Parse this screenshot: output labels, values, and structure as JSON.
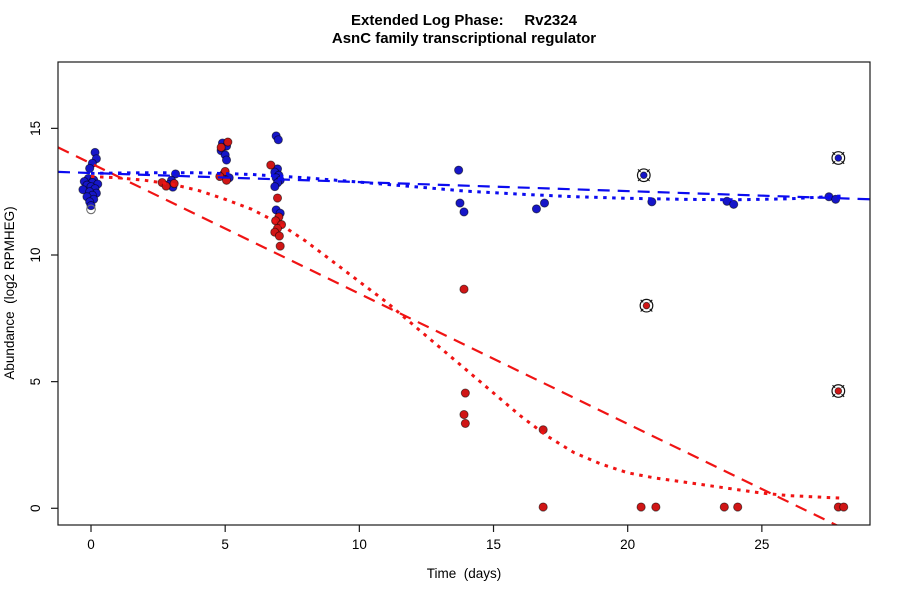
{
  "title": {
    "line1": "Extended Log Phase:     Rv2324",
    "line2": "AsnC family transcriptional regulator"
  },
  "colors": {
    "blue_point": "#1616C8",
    "red_point": "#D01616",
    "blue_line": "#0B0BF0",
    "red_line": "#F01414",
    "frame": "#1a1a1a",
    "circled_ring": "#111111",
    "open_circle": "#6f6f6f"
  },
  "chart_data": {
    "type": "scatter",
    "title": "Extended Log Phase: Rv2324 — AsnC family transcriptional regulator",
    "xlabel": "Time  (days)",
    "ylabel": "Abundance  (log2 RPMHEG)",
    "xlim": [
      -1.23,
      29.03
    ],
    "ylim": [
      -0.66,
      17.62
    ],
    "x_ticks": [
      0,
      5,
      10,
      15,
      20,
      25
    ],
    "y_ticks": [
      0,
      5,
      10,
      15
    ],
    "grid": false,
    "legend": "none",
    "series": [
      {
        "name": "blue-replicates",
        "marker": "filled-dot",
        "color_key": "blue_point",
        "points": [
          [
            0.15,
            14.05
          ],
          [
            0.2,
            13.8
          ],
          [
            0.05,
            13.62
          ],
          [
            -0.05,
            13.42
          ],
          [
            -0.1,
            13.02
          ],
          [
            0.1,
            12.96
          ],
          [
            -0.25,
            12.9
          ],
          [
            0.05,
            12.86
          ],
          [
            0.25,
            12.8
          ],
          [
            -0.15,
            12.76
          ],
          [
            0.0,
            12.7
          ],
          [
            0.15,
            12.62
          ],
          [
            -0.3,
            12.58
          ],
          [
            -0.05,
            12.5
          ],
          [
            0.2,
            12.44
          ],
          [
            0.05,
            12.36
          ],
          [
            -0.15,
            12.3
          ],
          [
            0.1,
            12.2
          ],
          [
            -0.05,
            12.1
          ],
          [
            0.0,
            11.95
          ],
          [
            3.15,
            13.2
          ],
          [
            3.0,
            12.95
          ],
          [
            2.9,
            12.78
          ],
          [
            3.05,
            12.68
          ],
          [
            4.9,
            14.42
          ],
          [
            5.05,
            14.3
          ],
          [
            4.85,
            14.12
          ],
          [
            5.0,
            13.95
          ],
          [
            5.05,
            13.75
          ],
          [
            4.95,
            13.2
          ],
          [
            5.15,
            13.05
          ],
          [
            6.9,
            14.7
          ],
          [
            6.98,
            14.55
          ],
          [
            6.95,
            13.4
          ],
          [
            6.85,
            13.27
          ],
          [
            7.0,
            13.15
          ],
          [
            6.9,
            13.05
          ],
          [
            7.05,
            12.95
          ],
          [
            6.95,
            12.85
          ],
          [
            6.85,
            12.7
          ],
          [
            6.9,
            11.78
          ],
          [
            7.05,
            11.65
          ],
          [
            13.7,
            13.35
          ],
          [
            13.75,
            12.05
          ],
          [
            13.9,
            11.7
          ],
          [
            16.6,
            11.82
          ],
          [
            16.9,
            12.05
          ],
          [
            20.9,
            12.1
          ],
          [
            23.7,
            12.12
          ],
          [
            23.95,
            12.0
          ],
          [
            27.5,
            12.3
          ],
          [
            27.75,
            12.2
          ]
        ]
      },
      {
        "name": "red-replicates",
        "marker": "filled-dot",
        "color_key": "red_point",
        "points": [
          [
            2.65,
            12.86
          ],
          [
            2.8,
            12.72
          ],
          [
            3.1,
            12.82
          ],
          [
            5.1,
            14.46
          ],
          [
            4.85,
            14.25
          ],
          [
            5.0,
            13.3
          ],
          [
            4.8,
            13.1
          ],
          [
            5.05,
            12.95
          ],
          [
            6.7,
            13.55
          ],
          [
            6.95,
            12.25
          ],
          [
            7.0,
            11.5
          ],
          [
            6.88,
            11.35
          ],
          [
            7.1,
            11.2
          ],
          [
            6.95,
            11.05
          ],
          [
            6.85,
            10.9
          ],
          [
            7.02,
            10.75
          ],
          [
            7.05,
            10.35
          ],
          [
            13.9,
            8.65
          ],
          [
            13.95,
            4.55
          ],
          [
            13.9,
            3.7
          ],
          [
            13.95,
            3.35
          ],
          [
            16.85,
            3.1
          ],
          [
            16.85,
            0.05
          ],
          [
            20.5,
            0.05
          ],
          [
            21.05,
            0.05
          ],
          [
            23.6,
            0.05
          ],
          [
            24.1,
            0.05
          ],
          [
            27.85,
            0.05
          ],
          [
            28.05,
            0.05
          ]
        ]
      },
      {
        "name": "blue-flagged-outliers",
        "marker": "circled-dot",
        "color_key": "blue_point",
        "points": [
          [
            20.6,
            13.15
          ],
          [
            27.85,
            13.83
          ]
        ]
      },
      {
        "name": "red-flagged-outliers",
        "marker": "circled-dot",
        "color_key": "red_point",
        "points": [
          [
            20.7,
            8.0
          ],
          [
            27.85,
            4.63
          ]
        ]
      },
      {
        "name": "open-circle-points",
        "marker": "open-dot",
        "color_key": "open_circle",
        "points": [
          [
            0.0,
            11.8
          ]
        ]
      }
    ],
    "lines": [
      {
        "name": "blue-linear-fit",
        "style": "dashed",
        "color_key": "blue_line",
        "points": [
          [
            -1.23,
            13.28
          ],
          [
            29.03,
            12.2
          ]
        ]
      },
      {
        "name": "red-linear-fit",
        "style": "dashed",
        "color_key": "red_line",
        "points": [
          [
            -1.23,
            14.25
          ],
          [
            29.03,
            -1.31
          ]
        ]
      },
      {
        "name": "blue-loess-fit",
        "style": "dotted",
        "color_key": "blue_line",
        "points": [
          [
            0,
            13.22
          ],
          [
            2,
            13.25
          ],
          [
            4,
            13.25
          ],
          [
            6,
            13.18
          ],
          [
            8,
            13.05
          ],
          [
            10,
            12.88
          ],
          [
            12,
            12.7
          ],
          [
            14,
            12.52
          ],
          [
            16,
            12.4
          ],
          [
            18,
            12.3
          ],
          [
            20,
            12.24
          ],
          [
            22,
            12.2
          ],
          [
            24,
            12.18
          ],
          [
            26,
            12.22
          ],
          [
            28,
            12.33
          ]
        ]
      },
      {
        "name": "red-loess-fit",
        "style": "dotted",
        "color_key": "red_line",
        "points": [
          [
            0,
            13.1
          ],
          [
            1,
            13.05
          ],
          [
            2,
            12.95
          ],
          [
            3,
            12.8
          ],
          [
            4,
            12.55
          ],
          [
            5,
            12.2
          ],
          [
            6,
            11.8
          ],
          [
            7,
            11.25
          ],
          [
            8,
            10.55
          ],
          [
            9,
            9.75
          ],
          [
            10,
            8.95
          ],
          [
            11,
            8.15
          ],
          [
            12,
            7.25
          ],
          [
            13,
            6.35
          ],
          [
            14,
            5.45
          ],
          [
            15,
            4.55
          ],
          [
            16,
            3.65
          ],
          [
            17,
            2.85
          ],
          [
            18,
            2.2
          ],
          [
            19,
            1.75
          ],
          [
            20,
            1.4
          ],
          [
            21,
            1.2
          ],
          [
            22,
            1.05
          ],
          [
            23,
            0.9
          ],
          [
            24,
            0.75
          ],
          [
            25,
            0.6
          ],
          [
            26,
            0.5
          ],
          [
            27,
            0.45
          ],
          [
            28,
            0.4
          ]
        ]
      }
    ]
  }
}
